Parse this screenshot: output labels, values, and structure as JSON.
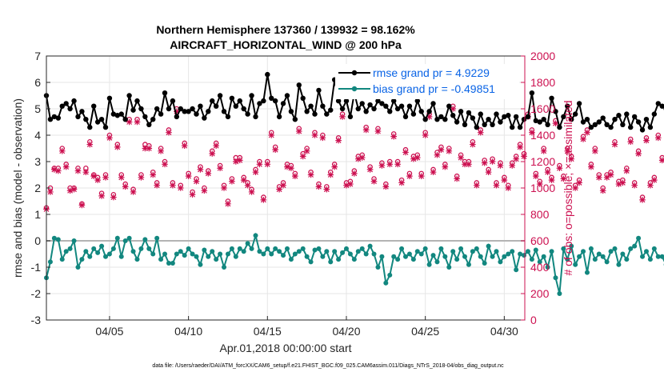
{
  "chart_data": {
    "type": "line",
    "title_line1": "Northern Hemisphere 137360 / 139932 = 98.162%",
    "title_line2": "AIRCRAFT_HORIZONTAL_WIND @ 200 hPa",
    "xlabel": "Apr.01,2018 00:00:00 start",
    "ylabel_left": "rmse and bias (model - observation)",
    "ylabel_right": "# of obs: o=possible; ×=assimilated",
    "xlim": [
      1,
      31.3
    ],
    "ylim_left": [
      -3,
      7
    ],
    "ylim_right": [
      0,
      2000
    ],
    "x_ticks": [
      {
        "x": 5,
        "label": "04/05"
      },
      {
        "x": 10,
        "label": "04/10"
      },
      {
        "x": 15,
        "label": "04/15"
      },
      {
        "x": 20,
        "label": "04/20"
      },
      {
        "x": 25,
        "label": "04/25"
      },
      {
        "x": 30,
        "label": "04/30"
      }
    ],
    "y_ticks_left": [
      "7",
      "6",
      "5",
      "4",
      "3",
      "2",
      "1",
      "0",
      "-1",
      "-2",
      "-3"
    ],
    "y_ticks_right": [
      "2000",
      "1800",
      "1600",
      "1400",
      "1200",
      "1000",
      "800",
      "600",
      "400",
      "200",
      "0"
    ],
    "colors": {
      "rmse": "#000000",
      "bias": "#12877f",
      "obs": "#cc1050",
      "legend_text": "#0a64e6",
      "zero_line": "#b4b4b4"
    },
    "series": [
      {
        "name": "rmse grand pr = 4.9229",
        "marker": "star",
        "start_x": 1.0,
        "step": 0.25,
        "values": [
          5.5,
          4.6,
          4.7,
          4.65,
          5.1,
          5.2,
          5.0,
          5.3,
          4.7,
          4.9,
          4.6,
          4.3,
          5.1,
          4.5,
          4.6,
          4.3,
          5.4,
          4.8,
          4.75,
          4.8,
          4.6,
          5.5,
          4.95,
          5.3,
          5.0,
          4.7,
          4.4,
          4.6,
          5.0,
          4.8,
          5.6,
          5.0,
          5.3,
          4.7,
          5.0,
          4.9,
          4.9,
          5.0,
          4.8,
          5.1,
          4.65,
          4.9,
          5.3,
          5.1,
          5.5,
          4.9,
          4.7,
          5.4,
          5.1,
          5.3,
          5.0,
          4.8,
          5.5,
          4.7,
          5.2,
          5.3,
          6.3,
          5.4,
          5.3,
          4.7,
          5.2,
          5.5,
          4.9,
          4.6,
          5.9,
          5.4,
          4.9,
          5.1,
          4.8,
          5.7,
          5.1,
          4.8,
          4.95,
          6.1,
          5.3,
          5.0,
          5.3,
          4.7,
          5.6,
          5.0,
          5.2,
          4.9,
          5.15,
          5.0,
          5.3,
          5.2,
          5.1,
          4.9,
          5.3,
          5.0,
          5.1,
          4.7,
          5.1,
          4.8,
          5.3,
          4.9,
          4.6,
          4.9,
          5.2,
          4.6,
          4.7,
          4.6,
          5.1,
          4.75,
          4.5,
          4.9,
          4.4,
          4.85,
          4.65,
          4.3,
          4.8,
          4.4,
          4.6,
          4.4,
          4.8,
          4.5,
          4.7,
          4.75,
          4.3,
          4.7,
          4.3,
          4.6,
          4.7,
          5.6,
          4.55,
          4.5,
          4.6,
          4.4,
          5.4,
          4.9,
          4.3,
          4.7,
          5.1,
          4.6,
          4.8,
          5.2,
          4.5,
          4.6,
          4.3,
          4.4,
          4.5,
          4.65,
          4.4,
          4.3,
          4.6,
          4.75,
          4.4,
          4.8,
          4.3,
          4.7,
          4.5,
          4.2,
          4.6,
          4.3,
          4.8,
          5.2,
          5.1,
          5.0,
          5.2,
          5.15,
          5.1
        ]
      },
      {
        "name": "bias grand pr = -0.49851",
        "marker": "dot",
        "start_x": 1.0,
        "step": 0.25,
        "values": [
          -1.4,
          -0.8,
          0.1,
          0.05,
          -0.7,
          -0.4,
          -0.3,
          0.0,
          -1.0,
          -0.7,
          -0.4,
          -0.6,
          -0.3,
          -0.45,
          -0.2,
          -0.6,
          -0.5,
          -0.3,
          0.1,
          -0.6,
          0.0,
          0.1,
          -0.4,
          -0.7,
          -0.3,
          0.05,
          -0.3,
          -0.5,
          0.1,
          -0.7,
          -0.5,
          -0.85,
          -0.85,
          -0.5,
          -0.4,
          -0.55,
          -0.3,
          -0.5,
          -0.6,
          -0.9,
          -0.35,
          -0.6,
          -0.4,
          -0.7,
          -0.5,
          -1.0,
          -0.5,
          -0.3,
          -0.6,
          -0.3,
          -0.4,
          -0.1,
          -0.3,
          0.2,
          -0.4,
          -0.5,
          -0.3,
          -0.5,
          -0.3,
          -0.4,
          -0.55,
          -0.3,
          -0.7,
          -0.5,
          -0.4,
          -0.3,
          -0.6,
          -0.8,
          -0.35,
          -0.3,
          -0.6,
          -0.4,
          -0.8,
          -0.4,
          -0.7,
          -0.45,
          -0.3,
          -0.5,
          -0.7,
          -0.4,
          -0.3,
          -0.5,
          -0.2,
          -0.5,
          -1.0,
          -0.6,
          -1.6,
          -1.3,
          -0.6,
          -0.7,
          -0.3,
          -0.6,
          -0.5,
          -0.7,
          -0.4,
          -0.5,
          -0.3,
          -0.9,
          -0.55,
          -0.8,
          -0.3,
          -0.6,
          -1.0,
          -0.4,
          -0.7,
          -0.3,
          -0.6,
          -0.9,
          -0.4,
          -0.3,
          -0.6,
          -0.85,
          -0.2,
          -0.6,
          -0.4,
          -0.8,
          -0.6,
          -0.5,
          -0.4,
          -1.1,
          -0.5,
          -0.55,
          -0.4,
          -0.7,
          -0.35,
          -0.8,
          -0.6,
          -1.0,
          -0.4,
          -1.4,
          -2.0,
          -0.3,
          -0.7,
          -0.2,
          -0.9,
          -0.6,
          -0.4,
          -1.2,
          -0.3,
          -0.7,
          -0.5,
          -0.6,
          -0.8,
          -0.4,
          -0.3,
          -0.9,
          -0.5,
          -0.7,
          -0.3,
          -0.2,
          0.1,
          -0.6,
          -0.4,
          -0.7,
          -0.3,
          -0.6,
          -0.6,
          -0.9,
          -0.2,
          0.0
        ]
      },
      {
        "name": "obs possible",
        "marker": "circle",
        "start_x": 1.0,
        "step": 0.25,
        "values": [
          850,
          1000,
          1150,
          1150,
          1300,
          1180,
          1000,
          1000,
          1150,
          880,
          1150,
          1350,
          1100,
          1080,
          960,
          1100,
          1400,
          950,
          1330,
          1100,
          1030,
          1520,
          990,
          1520,
          1100,
          1330,
          1320,
          1120,
          1040,
          1300,
          1200,
          1440,
          1040,
          1600,
          1020,
          1340,
          1110,
          970,
          1070,
          1160,
          1000,
          1130,
          1280,
          1340,
          1170,
          1020,
          900,
          1070,
          1230,
          1230,
          1080,
          1040,
          990,
          1140,
          1200,
          930,
          1200,
          1420,
          1310,
          1010,
          1040,
          1180,
          1170,
          1110,
          1450,
          1260,
          1300,
          1120,
          1420,
          1030,
          1400,
          1010,
          1120,
          1180,
          1380,
          1560,
          1040,
          1050,
          1130,
          1240,
          1250,
          1460,
          1160,
          1070,
          1450,
          1190,
          1030,
          1200,
          1410,
          1200,
          1060,
          1290,
          1110,
          1240,
          1250,
          1110,
          1420,
          1560,
          1140,
          1270,
          1310,
          1180,
          1300,
          1620,
          1090,
          1250,
          1200,
          1200,
          1350,
          1040,
          1440,
          1210,
          1140,
          1220,
          1040,
          1190,
          1080,
          1020,
          1190,
          1240,
          1330,
          1260,
          1560,
          1440,
          1110,
          1050,
          1300,
          1140,
          1080,
          1510,
          1170,
          1090,
          1300,
          1240,
          1020,
          1060,
          1390,
          1440,
          1180,
          1300,
          1100,
          1000,
          1100,
          1120,
          1350,
          1050,
          1060,
          1150,
          1370,
          1040,
          1280,
          930,
          1380,
          1040,
          1080,
          1400,
          1230,
          1230,
          1000,
          1200,
          1220,
          1080,
          0
        ]
      },
      {
        "name": "obs assimilated",
        "marker": "x",
        "start_x": 1.0,
        "step": 0.25,
        "values": [
          840,
          970,
          1140,
          1130,
          1280,
          1160,
          980,
          990,
          1130,
          870,
          1120,
          1330,
          1090,
          1060,
          940,
          1080,
          1380,
          930,
          1310,
          1080,
          1010,
          1500,
          970,
          1500,
          1080,
          1300,
          1300,
          1100,
          1020,
          1280,
          1180,
          1420,
          1020,
          1580,
          1000,
          1320,
          1090,
          950,
          1050,
          1140,
          980,
          1110,
          1260,
          1320,
          1150,
          1000,
          880,
          1050,
          1200,
          1210,
          1060,
          1020,
          970,
          1120,
          1180,
          910,
          1180,
          1400,
          1290,
          990,
          1020,
          1160,
          1150,
          1090,
          1430,
          1240,
          1280,
          1100,
          1400,
          1010,
          1380,
          990,
          1100,
          1160,
          1360,
          1540,
          1020,
          1030,
          1110,
          1220,
          1230,
          1440,
          1140,
          1050,
          1430,
          1170,
          1010,
          1180,
          1390,
          1180,
          1040,
          1270,
          1090,
          1220,
          1230,
          1090,
          1400,
          1540,
          1120,
          1250,
          1290,
          1160,
          1280,
          1600,
          1070,
          1230,
          1180,
          1180,
          1330,
          1020,
          1420,
          1190,
          1120,
          1200,
          1020,
          1170,
          1060,
          1000,
          1170,
          1220,
          1310,
          1240,
          1540,
          1420,
          1090,
          1030,
          1280,
          1120,
          1060,
          1490,
          1150,
          1070,
          1280,
          1220,
          1000,
          1040,
          1370,
          1420,
          1160,
          1280,
          1080,
          980,
          1080,
          1100,
          1330,
          1030,
          1040,
          1130,
          1350,
          1020,
          1260,
          910,
          1360,
          1020,
          1060,
          1380,
          1210,
          1210,
          980,
          1180,
          1200,
          1060,
          0
        ]
      }
    ],
    "footnote": "data file: /Users/raeder/DAI/ATM_forcXX/CAM6_setup/f.e21.FHIST_BGC.f09_025.CAM6assim.011/Diags_NTrS_2018-04/obs_diag_output.nc"
  }
}
